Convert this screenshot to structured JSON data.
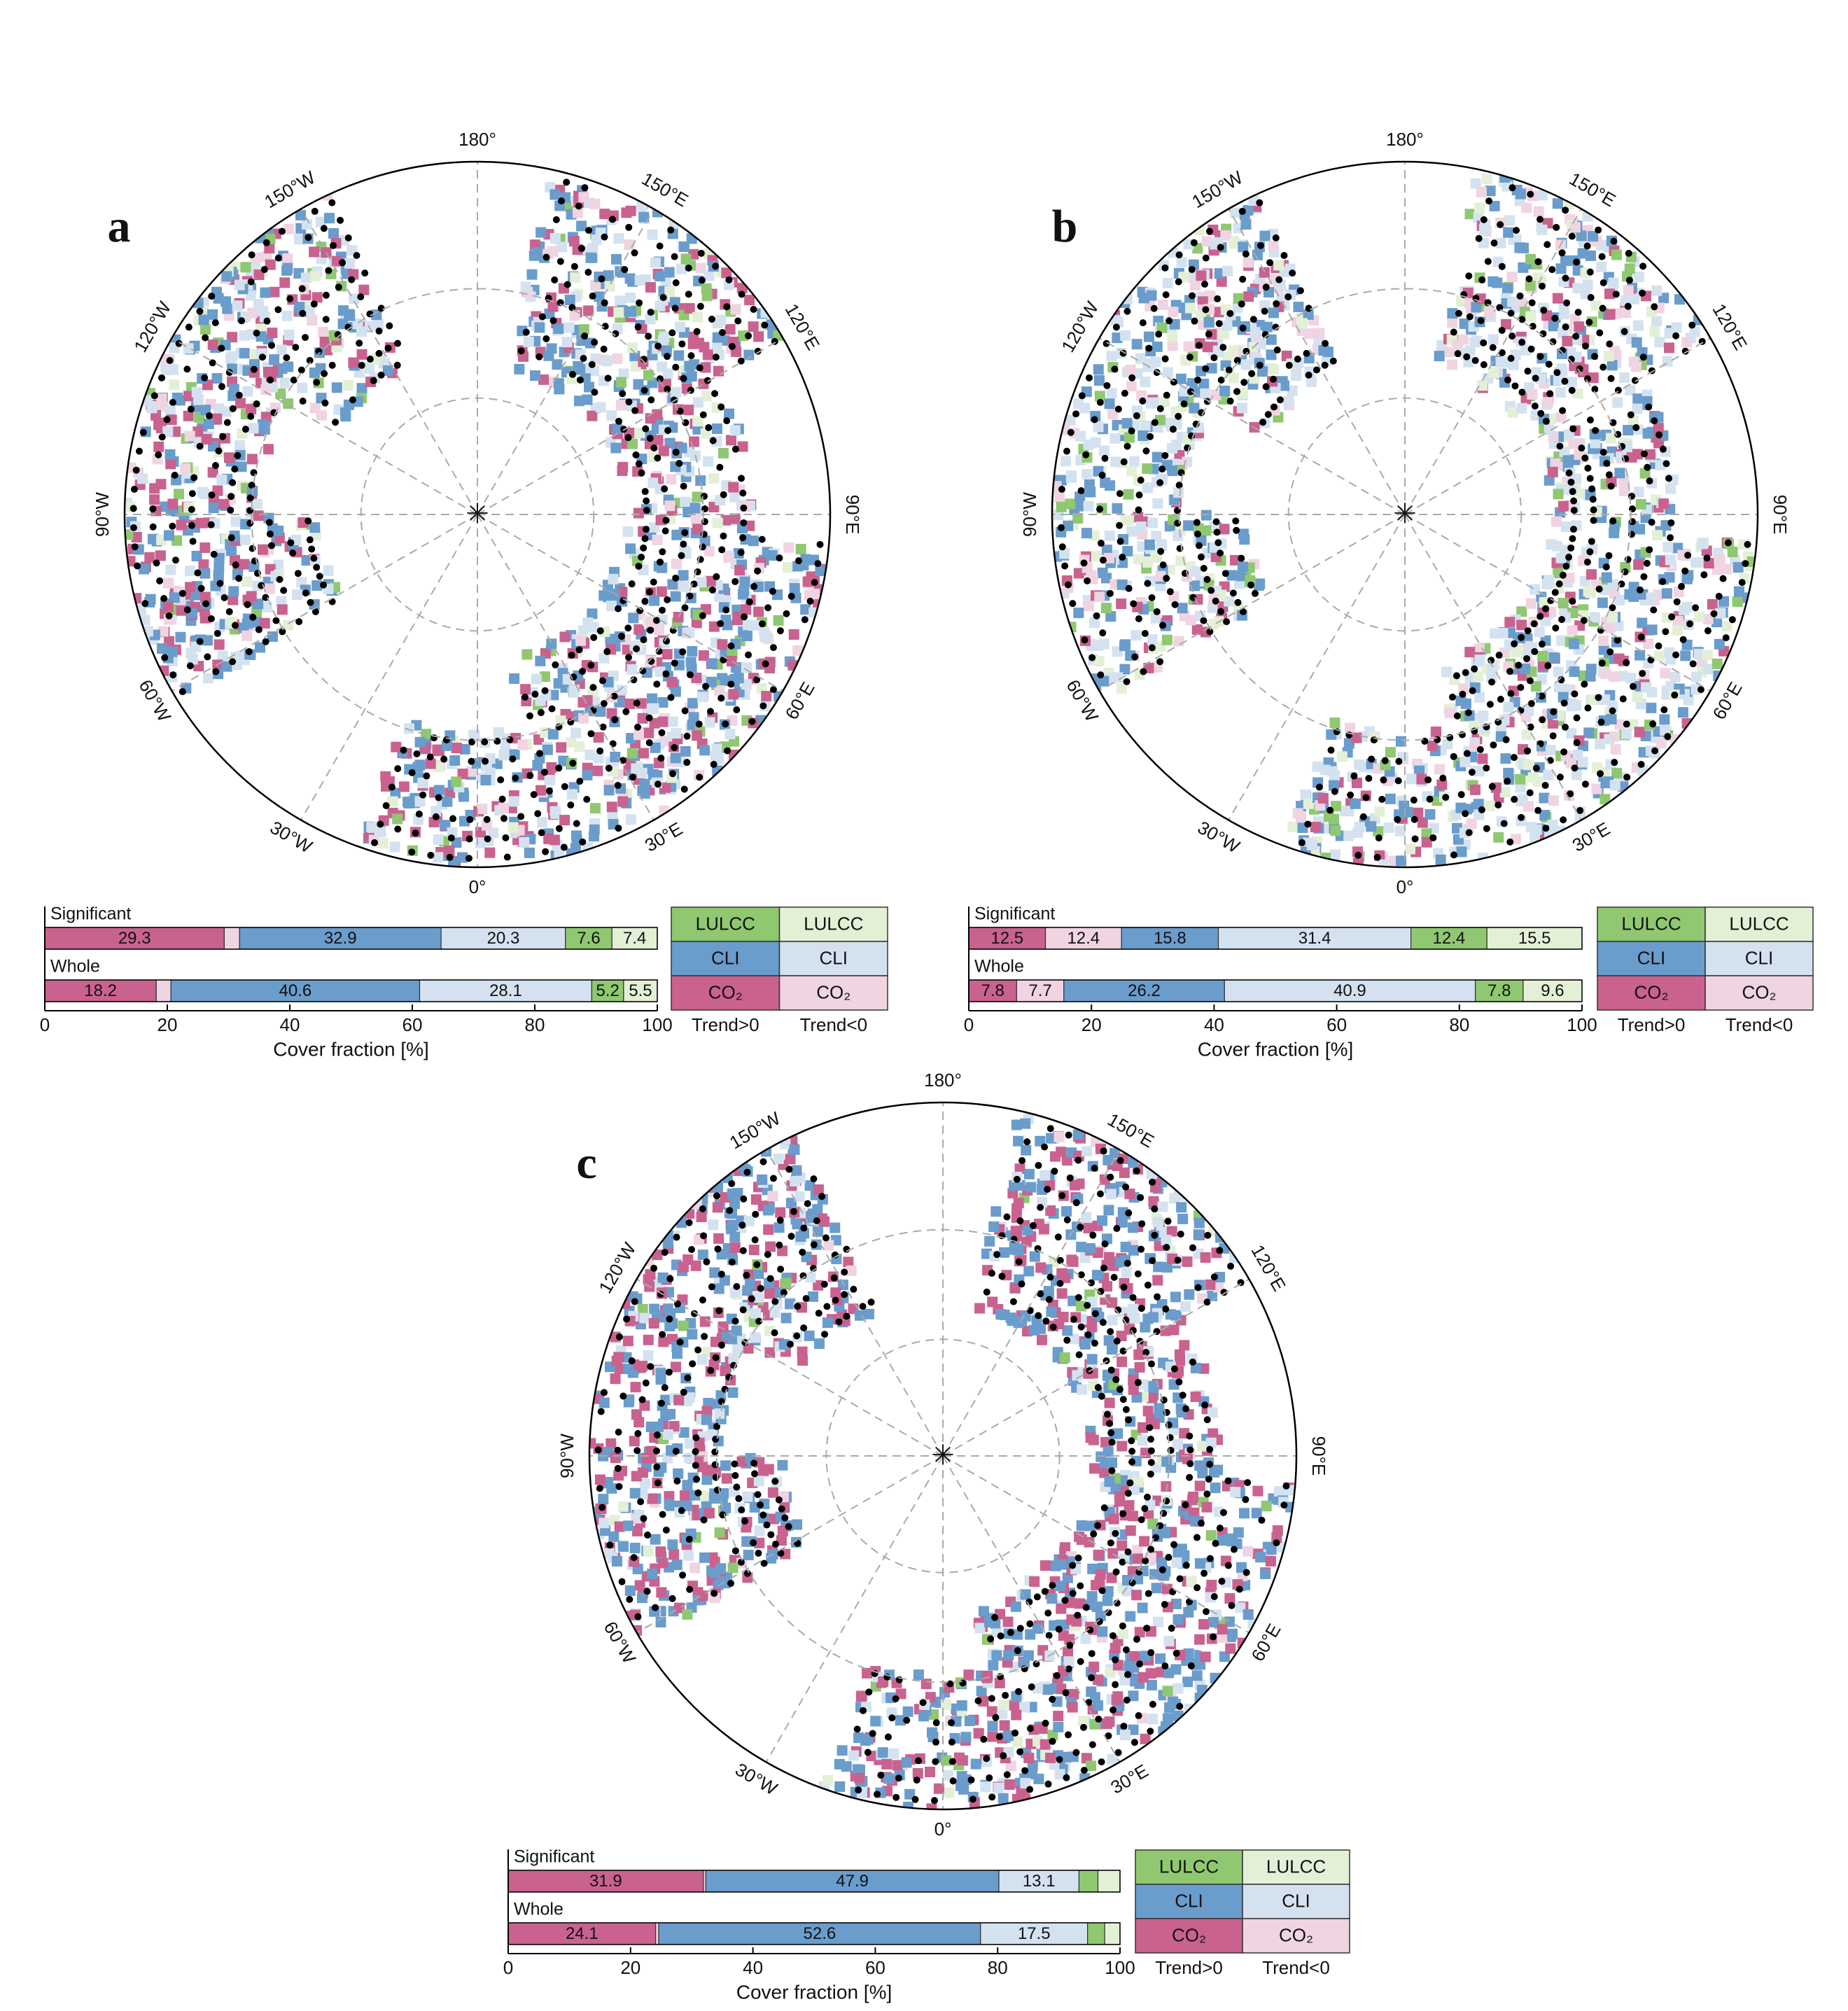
{
  "chart_data": [
    {
      "type": "bar",
      "panel": "a",
      "orientation": "horizontal",
      "stacked": true,
      "categories": [
        "Significant",
        "Whole"
      ],
      "series": [
        {
          "color": "#c9628f",
          "values": [
            29.3,
            18.2
          ]
        },
        {
          "color": "#f0d4e2",
          "values": [
            2.5,
            2.4
          ]
        },
        {
          "color": "#6a9ccc",
          "values": [
            32.9,
            40.6
          ]
        },
        {
          "color": "#d4e2f0",
          "values": [
            20.3,
            28.1
          ]
        },
        {
          "color": "#8fc870",
          "values": [
            7.6,
            5.2
          ]
        },
        {
          "color": "#e3f0d6",
          "values": [
            7.4,
            5.5
          ]
        }
      ],
      "xlim": [
        0,
        100
      ],
      "xticks": [
        0,
        20,
        40,
        60,
        80,
        100
      ],
      "xlabel": "Cover fraction [%]",
      "legend": {
        "rows": [
          "LULCC",
          "CLI",
          "CO₂"
        ],
        "columns": [
          "Trend>0",
          "Trend<0"
        ]
      },
      "map": {
        "lon_labels": [
          "180°",
          "150°E",
          "120°E",
          "90°E",
          "60°E",
          "30°E",
          "0°",
          "30°W",
          "60°W",
          "90°W",
          "120°W",
          "150°W"
        ]
      }
    },
    {
      "type": "bar",
      "panel": "b",
      "orientation": "horizontal",
      "stacked": true,
      "categories": [
        "Significant",
        "Whole"
      ],
      "series": [
        {
          "color": "#c9628f",
          "values": [
            12.5,
            7.8
          ]
        },
        {
          "color": "#f0d4e2",
          "values": [
            12.4,
            7.7
          ]
        },
        {
          "color": "#6a9ccc",
          "values": [
            15.8,
            26.2
          ]
        },
        {
          "color": "#d4e2f0",
          "values": [
            31.4,
            40.9
          ]
        },
        {
          "color": "#8fc870",
          "values": [
            12.4,
            7.8
          ]
        },
        {
          "color": "#e3f0d6",
          "values": [
            15.5,
            9.6
          ]
        }
      ],
      "xlim": [
        0,
        100
      ],
      "xticks": [
        0,
        20,
        40,
        60,
        80,
        100
      ],
      "xlabel": "Cover fraction [%]",
      "legend": {
        "rows": [
          "LULCC",
          "CLI",
          "CO₂"
        ],
        "columns": [
          "Trend>0",
          "Trend<0"
        ]
      },
      "map": {
        "lon_labels": [
          "180°",
          "150°E",
          "120°E",
          "90°E",
          "60°E",
          "30°E",
          "0°",
          "30°W",
          "60°W",
          "90°W",
          "120°W",
          "150°W"
        ]
      }
    },
    {
      "type": "bar",
      "panel": "c",
      "orientation": "horizontal",
      "stacked": true,
      "categories": [
        "Significant",
        "Whole"
      ],
      "series": [
        {
          "color": "#c9628f",
          "values": [
            31.9,
            24.1
          ]
        },
        {
          "color": "#f0d4e2",
          "values": [
            0.4,
            0.5
          ]
        },
        {
          "color": "#6a9ccc",
          "values": [
            47.9,
            52.6
          ]
        },
        {
          "color": "#d4e2f0",
          "values": [
            13.1,
            17.5
          ]
        },
        {
          "color": "#8fc870",
          "values": [
            3.1,
            2.8
          ]
        },
        {
          "color": "#e3f0d6",
          "values": [
            3.6,
            2.5
          ]
        }
      ],
      "xlim": [
        0,
        100
      ],
      "xticks": [
        0,
        20,
        40,
        60,
        80,
        100
      ],
      "xlabel": "Cover fraction [%]",
      "legend": {
        "rows": [
          "LULCC",
          "CLI",
          "CO₂"
        ],
        "columns": [
          "Trend>0",
          "Trend<0"
        ]
      },
      "map": {
        "lon_labels": [
          "180°",
          "150°E",
          "120°E",
          "90°E",
          "60°E",
          "30°E",
          "0°",
          "30°W",
          "60°W",
          "90°W",
          "120°W",
          "150°W"
        ]
      }
    }
  ]
}
